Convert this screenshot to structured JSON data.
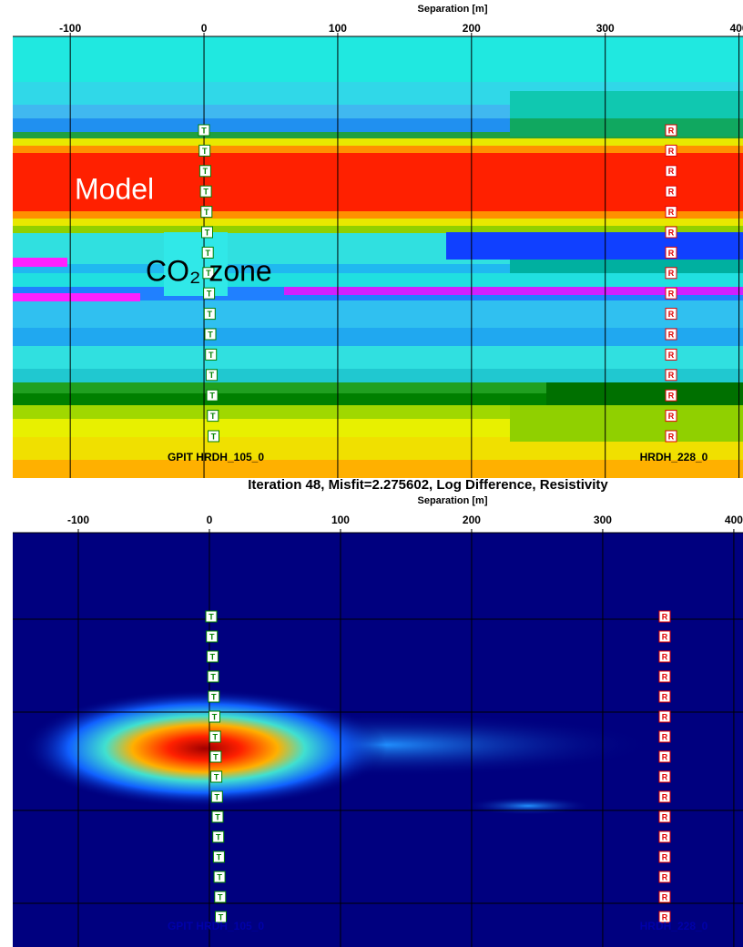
{
  "chart_data": [
    {
      "type": "heatmap",
      "xlabel": "Separation [m]",
      "xlim": [
        -143,
        403
      ],
      "xticks": [
        -100,
        0,
        100,
        200,
        300,
        400
      ],
      "annotations": [
        "Model",
        "CO₂ zone"
      ],
      "wells": [
        "GPIT HRDH_105_0",
        "HRDH_228_0"
      ],
      "markers": [
        "T",
        "R"
      ]
    },
    {
      "type": "heatmap",
      "title": "Iteration 48, Misfit=2.275602, Log Difference, Resistivity",
      "xlabel": "Separation [m]",
      "xlim": [
        -150,
        407
      ],
      "xticks": [
        -100,
        0,
        100,
        200,
        300,
        400
      ],
      "wells": [
        "GPIT HRDH_105_0",
        "HRDH_228_0"
      ],
      "markers": [
        "T",
        "R"
      ]
    }
  ]
}
